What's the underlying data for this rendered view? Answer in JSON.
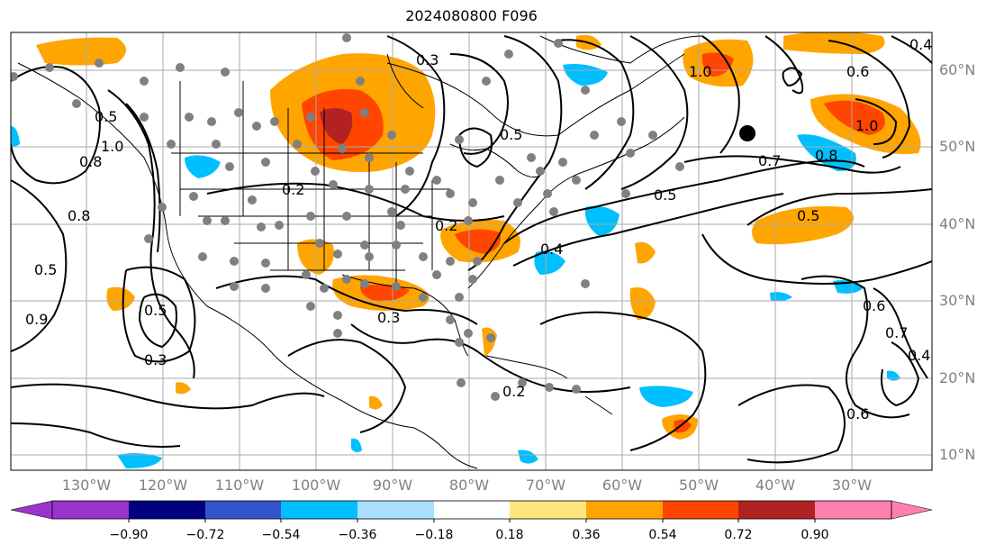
{
  "title": "2024080800 F096",
  "longitude_labels": [
    "130°W",
    "120°W",
    "110°W",
    "100°W",
    "90°W",
    "80°W",
    "70°W",
    "60°W",
    "50°W",
    "40°W",
    "30°W"
  ],
  "latitude_labels": [
    "60°N",
    "50°N",
    "40°N",
    "30°N",
    "20°N",
    "10°N"
  ],
  "contour_labels": [
    "0.3",
    "0.5",
    "0.8",
    "1.0",
    "0.2",
    "0.5",
    "0.7",
    "0.8",
    "1.0",
    "0.5",
    "0.4",
    "0.2",
    "0.3",
    "0.5",
    "0.3",
    "0.4",
    "0.6",
    "0.5",
    "0.6",
    "0.7",
    "0.4",
    "0.6",
    "0.2",
    "0.5",
    "0.9",
    "1.0",
    "0.8"
  ],
  "colorbar": {
    "tick_labels": [
      "−0.90",
      "−0.72",
      "−0.54",
      "−0.36",
      "−0.18",
      "0.18",
      "0.36",
      "0.54",
      "0.72",
      "0.90"
    ],
    "colors": [
      "#9933cc",
      "#000080",
      "#3355cc",
      "#00bfff",
      "#aadfff",
      "#ffffff",
      "#ffe680",
      "#ffa500",
      "#ff4500",
      "#b22222",
      "#ff80b0"
    ]
  },
  "colors": {
    "orange": "#ffa500",
    "red": "#ff4500",
    "darkred": "#b22222",
    "cyan": "#00bfff",
    "station_marker": "#808080"
  }
}
